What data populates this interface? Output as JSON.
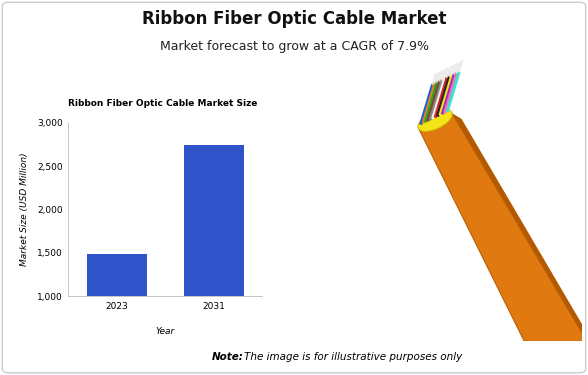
{
  "header": {
    "title": "Ribbon Fiber Optic Cable Market",
    "subtitle": "Market forecast to grow at a CAGR of 7.9%"
  },
  "chart_data": {
    "type": "bar",
    "title": "Ribbon Fiber Optic Cable Market Size",
    "x_label": "Year",
    "y_label": "Market Size (USD Million)",
    "categories": [
      "2023",
      "2031"
    ],
    "values": [
      1490,
      2750
    ],
    "color": "#2f54c9",
    "ylim": [
      1000,
      3000
    ],
    "yticks": [
      {
        "value": 1000,
        "label": "1,000"
      },
      {
        "value": 1500,
        "label": "1,500"
      },
      {
        "value": 2000,
        "label": "2,000"
      },
      {
        "value": 2500,
        "label": "2,500"
      },
      {
        "value": 3000,
        "label": "3,000"
      }
    ],
    "grid": false
  },
  "note": {
    "label": "Note:",
    "text": "The image is for illustrative purposes only"
  }
}
